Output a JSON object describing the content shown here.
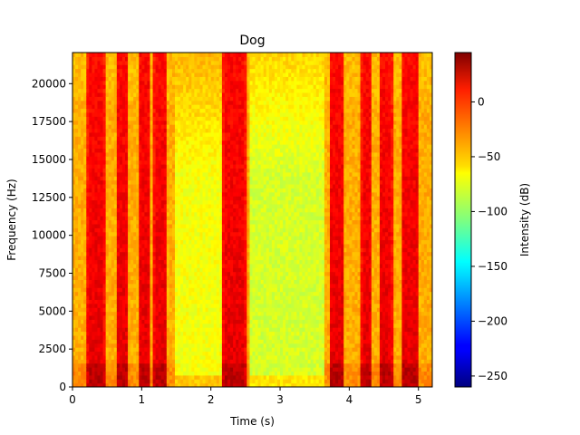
{
  "chart_data": {
    "type": "heatmap",
    "title": "Dog",
    "xlabel": "Time (s)",
    "ylabel": "Frequency (Hz)",
    "xlim": [
      0,
      5.2
    ],
    "ylim": [
      0,
      22050
    ],
    "x_ticks": [
      0,
      1,
      2,
      3,
      4,
      5
    ],
    "y_ticks": [
      0,
      2500,
      5000,
      7500,
      10000,
      12500,
      15000,
      17500,
      20000
    ],
    "colorbar": {
      "label": "Intensity (dB)",
      "range": [
        -260,
        45
      ],
      "ticks": [
        0,
        -50,
        -100,
        -150,
        -200,
        -250
      ],
      "colormap": "jet"
    },
    "loud_segments_s": [
      [
        0.22,
        0.47
      ],
      [
        0.64,
        0.82
      ],
      [
        0.95,
        1.12
      ],
      [
        1.18,
        1.38
      ],
      [
        2.18,
        2.5
      ],
      [
        3.72,
        3.92
      ],
      [
        4.16,
        4.33
      ],
      [
        4.43,
        4.63
      ],
      [
        4.75,
        5.02
      ]
    ],
    "loud_level_db": 15,
    "background_level_db": -45,
    "quiet_gaps_s": [
      {
        "range": [
          1.5,
          2.15
        ],
        "level_db": -72
      },
      {
        "range": [
          2.55,
          3.62
        ],
        "level_db": -82
      }
    ]
  }
}
